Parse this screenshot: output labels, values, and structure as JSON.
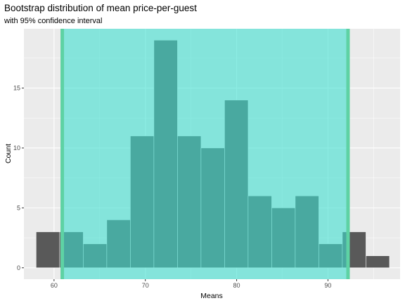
{
  "title": "Bootstrap distribution of mean price-per-guest",
  "subtitle": "with 95% confidence interval",
  "chart_data": {
    "type": "bar",
    "subtype": "histogram",
    "xlabel": "Means",
    "ylabel": "Count",
    "xlim": [
      56.7,
      97.9
    ],
    "ylim": [
      -0.95,
      19.95
    ],
    "x_ticks": [
      60,
      70,
      80,
      90
    ],
    "y_ticks": [
      0,
      5,
      10,
      15
    ],
    "bin_width": 2.58,
    "bins": [
      {
        "x": 59.33,
        "count": 3
      },
      {
        "x": 61.91,
        "count": 3
      },
      {
        "x": 64.49,
        "count": 2
      },
      {
        "x": 67.07,
        "count": 4
      },
      {
        "x": 69.65,
        "count": 11
      },
      {
        "x": 72.23,
        "count": 19
      },
      {
        "x": 74.81,
        "count": 11
      },
      {
        "x": 77.39,
        "count": 10
      },
      {
        "x": 79.97,
        "count": 14
      },
      {
        "x": 82.55,
        "count": 6
      },
      {
        "x": 85.13,
        "count": 5
      },
      {
        "x": 87.71,
        "count": 6
      },
      {
        "x": 90.29,
        "count": 2
      },
      {
        "x": 92.87,
        "count": 3
      },
      {
        "x": 95.45,
        "count": 1
      }
    ],
    "confidence_interval": {
      "level": 0.95,
      "lower": 60.9,
      "upper": 92.2
    },
    "colors": {
      "bar_fill": "#595959",
      "bar_outline": "#ffffff",
      "ci_fill": "#3fe0d0",
      "ci_fill_opacity": 0.6,
      "ci_line": "#5ed2a4",
      "panel_bg": "#ebebeb",
      "grid": "#ffffff"
    },
    "grid": true,
    "legend": "none"
  }
}
